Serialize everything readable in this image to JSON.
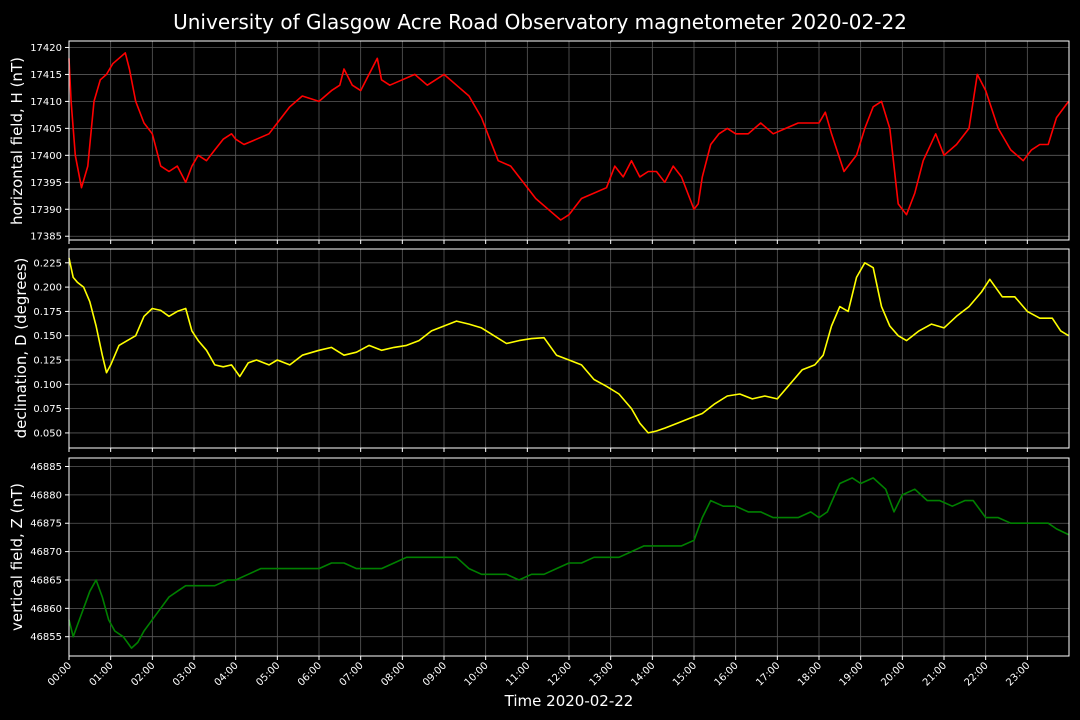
{
  "chart_data": {
    "type": "line",
    "title": "University of Glasgow Acre Road Observatory magnetometer 2020-02-22",
    "xlabel": "Time 2020-02-22",
    "x_ticks": [
      "00:00",
      "01:00",
      "02:00",
      "03:00",
      "04:00",
      "05:00",
      "06:00",
      "07:00",
      "08:00",
      "09:00",
      "10:00",
      "11:00",
      "12:00",
      "13:00",
      "14:00",
      "15:00",
      "16:00",
      "17:00",
      "18:00",
      "19:00",
      "20:00",
      "21:00",
      "22:00",
      "23:00"
    ],
    "xlim": [
      0,
      24
    ],
    "grid": true,
    "panels": [
      {
        "ylabel": "horizontal field, H (nT)",
        "color": "#ff0000",
        "ylim": [
          17384.3,
          17421.2
        ],
        "yticks": [
          "17385",
          "17390",
          "17395",
          "17400",
          "17405",
          "17410",
          "17415",
          "17420"
        ],
        "x": [
          0,
          0.05,
          0.15,
          0.3,
          0.45,
          0.6,
          0.75,
          0.9,
          1.05,
          1.2,
          1.35,
          1.45,
          1.6,
          1.8,
          2.0,
          2.2,
          2.4,
          2.6,
          2.8,
          2.95,
          3.1,
          3.3,
          3.5,
          3.7,
          3.9,
          4.0,
          4.2,
          4.5,
          4.8,
          5.0,
          5.3,
          5.6,
          6.0,
          6.3,
          6.5,
          6.6,
          6.8,
          7.0,
          7.2,
          7.4,
          7.5,
          7.7,
          8.0,
          8.3,
          8.6,
          9.0,
          9.3,
          9.6,
          9.9,
          10.1,
          10.3,
          10.6,
          10.9,
          11.2,
          11.5,
          11.8,
          12.0,
          12.3,
          12.6,
          12.9,
          13.1,
          13.3,
          13.5,
          13.7,
          13.9,
          14.1,
          14.3,
          14.5,
          14.7,
          14.9,
          15.0,
          15.1,
          15.2,
          15.4,
          15.6,
          15.8,
          16.0,
          16.3,
          16.6,
          16.9,
          17.2,
          17.5,
          17.8,
          18.0,
          18.15,
          18.3,
          18.6,
          18.9,
          19.1,
          19.3,
          19.5,
          19.7,
          19.9,
          20.1,
          20.3,
          20.5,
          20.8,
          21.0,
          21.3,
          21.6,
          21.8,
          22.0,
          22.3,
          22.6,
          22.9,
          23.1,
          23.3,
          23.5,
          23.7,
          23.99
        ],
        "y": [
          17418,
          17410,
          17400,
          17394,
          17398,
          17410,
          17414,
          17415,
          17417,
          17418,
          17419,
          17416,
          17410,
          17406,
          17404,
          17398,
          17397,
          17398,
          17395,
          17398,
          17400,
          17399,
          17401,
          17403,
          17404,
          17403,
          17402,
          17403,
          17404,
          17406,
          17409,
          17411,
          17410,
          17412,
          17413,
          17416,
          17413,
          17412,
          17415,
          17418,
          17414,
          17413,
          17414,
          17415,
          17413,
          17415,
          17413,
          17411,
          17407,
          17403,
          17399,
          17398,
          17395,
          17392,
          17390,
          17388,
          17389,
          17392,
          17393,
          17394,
          17398,
          17396,
          17399,
          17396,
          17397,
          17397,
          17395,
          17398,
          17396,
          17392,
          17390,
          17391,
          17396,
          17402,
          17404,
          17405,
          17404,
          17404,
          17406,
          17404,
          17405,
          17406,
          17406,
          17406,
          17408,
          17404,
          17397,
          17400,
          17405,
          17409,
          17410,
          17405,
          17391,
          17389,
          17393,
          17399,
          17404,
          17400,
          17402,
          17405,
          17415,
          17412,
          17405,
          17401,
          17399,
          17401,
          17402,
          17402,
          17407,
          17410
        ]
      },
      {
        "ylabel": "declination, D (degrees)",
        "color": "#ffff00",
        "ylim": [
          0.0345,
          0.2392
        ],
        "yticks": [
          "0.050",
          "0.075",
          "0.100",
          "0.125",
          "0.150",
          "0.175",
          "0.200",
          "0.225"
        ],
        "x": [
          0,
          0.1,
          0.2,
          0.35,
          0.5,
          0.65,
          0.8,
          0.9,
          1.0,
          1.2,
          1.4,
          1.6,
          1.8,
          2.0,
          2.2,
          2.4,
          2.6,
          2.8,
          2.95,
          3.1,
          3.3,
          3.5,
          3.7,
          3.9,
          4.1,
          4.3,
          4.5,
          4.8,
          5.0,
          5.3,
          5.6,
          6.0,
          6.3,
          6.6,
          6.9,
          7.2,
          7.5,
          7.8,
          8.1,
          8.4,
          8.7,
          9.0,
          9.3,
          9.6,
          9.9,
          10.2,
          10.5,
          10.8,
          11.1,
          11.4,
          11.7,
          12.0,
          12.3,
          12.6,
          12.9,
          13.2,
          13.5,
          13.7,
          13.9,
          14.1,
          14.3,
          14.6,
          14.9,
          15.2,
          15.5,
          15.8,
          16.1,
          16.4,
          16.7,
          17.0,
          17.3,
          17.6,
          17.9,
          18.1,
          18.3,
          18.5,
          18.7,
          18.9,
          19.1,
          19.3,
          19.5,
          19.7,
          19.9,
          20.1,
          20.4,
          20.7,
          21.0,
          21.3,
          21.6,
          21.9,
          22.1,
          22.4,
          22.7,
          23.0,
          23.3,
          23.6,
          23.8,
          23.99
        ],
        "y": [
          0.23,
          0.21,
          0.205,
          0.2,
          0.185,
          0.16,
          0.13,
          0.112,
          0.12,
          0.14,
          0.145,
          0.15,
          0.17,
          0.178,
          0.176,
          0.17,
          0.175,
          0.178,
          0.155,
          0.145,
          0.135,
          0.12,
          0.118,
          0.12,
          0.108,
          0.122,
          0.125,
          0.12,
          0.125,
          0.12,
          0.13,
          0.135,
          0.138,
          0.13,
          0.133,
          0.14,
          0.135,
          0.138,
          0.14,
          0.145,
          0.155,
          0.16,
          0.165,
          0.162,
          0.158,
          0.15,
          0.142,
          0.145,
          0.147,
          0.148,
          0.13,
          0.125,
          0.12,
          0.105,
          0.098,
          0.09,
          0.075,
          0.06,
          0.05,
          0.052,
          0.055,
          0.06,
          0.065,
          0.07,
          0.08,
          0.088,
          0.09,
          0.085,
          0.088,
          0.085,
          0.1,
          0.115,
          0.12,
          0.13,
          0.16,
          0.18,
          0.175,
          0.21,
          0.225,
          0.22,
          0.18,
          0.16,
          0.15,
          0.145,
          0.155,
          0.162,
          0.158,
          0.17,
          0.18,
          0.195,
          0.208,
          0.19,
          0.19,
          0.175,
          0.168,
          0.168,
          0.155,
          0.15
        ]
      },
      {
        "ylabel": "vertical field, Z (nT)",
        "color": "#008000",
        "ylim": [
          46851.6,
          46886.5
        ],
        "yticks": [
          "46855",
          "46860",
          "46865",
          "46870",
          "46875",
          "46880",
          "46885"
        ],
        "x": [
          0,
          0.1,
          0.2,
          0.35,
          0.5,
          0.65,
          0.8,
          0.95,
          1.1,
          1.3,
          1.5,
          1.65,
          1.8,
          2.0,
          2.2,
          2.4,
          2.6,
          2.8,
          3.0,
          3.2,
          3.5,
          3.8,
          4.0,
          4.3,
          4.6,
          5.0,
          5.3,
          5.6,
          6.0,
          6.3,
          6.6,
          6.9,
          7.2,
          7.5,
          7.8,
          8.1,
          8.4,
          8.7,
          9.0,
          9.3,
          9.6,
          9.9,
          10.2,
          10.5,
          10.8,
          11.1,
          11.4,
          11.7,
          12.0,
          12.3,
          12.6,
          12.9,
          13.2,
          13.5,
          13.8,
          14.1,
          14.4,
          14.7,
          15.0,
          15.2,
          15.4,
          15.7,
          16.0,
          16.3,
          16.6,
          16.9,
          17.2,
          17.5,
          17.8,
          18.0,
          18.2,
          18.5,
          18.8,
          19.0,
          19.3,
          19.6,
          19.8,
          20.0,
          20.3,
          20.6,
          20.9,
          21.2,
          21.5,
          21.7,
          22.0,
          22.3,
          22.6,
          22.9,
          23.2,
          23.5,
          23.7,
          23.99
        ],
        "y": [
          46858,
          46855,
          46857,
          46860,
          46863,
          46865,
          46862,
          46858,
          46856,
          46855,
          46853,
          46854,
          46856,
          46858,
          46860,
          46862,
          46863,
          46864,
          46864,
          46864,
          46864,
          46865,
          46865,
          46866,
          46867,
          46867,
          46867,
          46867,
          46867,
          46868,
          46868,
          46867,
          46867,
          46867,
          46868,
          46869,
          46869,
          46869,
          46869,
          46869,
          46867,
          46866,
          46866,
          46866,
          46865,
          46866,
          46866,
          46867,
          46868,
          46868,
          46869,
          46869,
          46869,
          46870,
          46871,
          46871,
          46871,
          46871,
          46872,
          46876,
          46879,
          46878,
          46878,
          46877,
          46877,
          46876,
          46876,
          46876,
          46877,
          46876,
          46877,
          46882,
          46883,
          46882,
          46883,
          46881,
          46877,
          46880,
          46881,
          46879,
          46879,
          46878,
          46879,
          46879,
          46876,
          46876,
          46875,
          46875,
          46875,
          46875,
          46874,
          46873
        ]
      }
    ]
  }
}
